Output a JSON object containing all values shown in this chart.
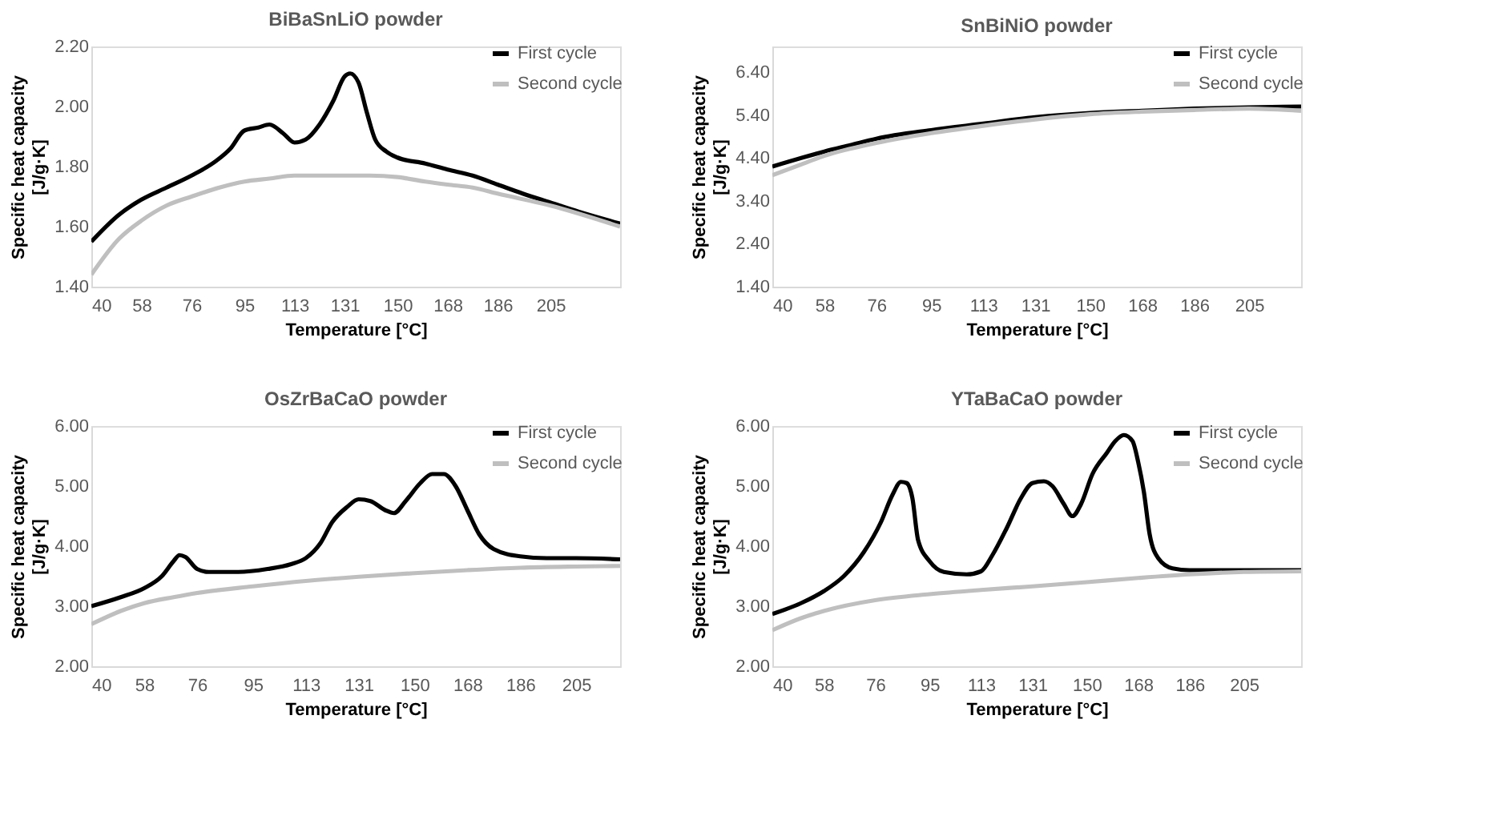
{
  "chart_data": [
    {
      "type": "line",
      "title": "BiBaSnLiO powder",
      "xlabel": "Temperature [°C]",
      "ylabel": "Specific heat capacity\n[J/g·K]",
      "legend": "top right",
      "line_style": "solid",
      "marker": "none",
      "xlim": [
        40,
        230
      ],
      "xticks": [
        40,
        58,
        76,
        95,
        113,
        131,
        150,
        168,
        186,
        205
      ],
      "ylim": [
        1.4,
        2.2
      ],
      "yticks": [
        {
          "value": 1.4,
          "label": "1.40"
        },
        {
          "value": 1.6,
          "label": "1.60"
        },
        {
          "value": 1.8,
          "label": "1.80"
        },
        {
          "value": 2.0,
          "label": "2.00"
        },
        {
          "value": 2.2,
          "label": "2.20"
        }
      ],
      "series": [
        {
          "name": "First cycle",
          "color": "#000000",
          "x": [
            40,
            50,
            58,
            67,
            76,
            85,
            90,
            95,
            100,
            104,
            109,
            113,
            117,
            122,
            127,
            131,
            133,
            136,
            139,
            142,
            146,
            150,
            160,
            168,
            177,
            186,
            195,
            205,
            215,
            230
          ],
          "values": [
            1.55,
            1.64,
            1.69,
            1.73,
            1.77,
            1.82,
            1.86,
            1.92,
            1.93,
            1.94,
            1.91,
            1.88,
            1.89,
            1.94,
            2.02,
            2.1,
            2.11,
            2.08,
            1.98,
            1.89,
            1.85,
            1.83,
            1.81,
            1.79,
            1.77,
            1.74,
            1.71,
            1.68,
            1.65,
            1.61
          ]
        },
        {
          "name": "Second cycle",
          "color": "#bfbfbf",
          "x": [
            40,
            50,
            58,
            67,
            76,
            86,
            95,
            104,
            113,
            122,
            131,
            140,
            150,
            160,
            168,
            177,
            186,
            205,
            230
          ],
          "values": [
            1.44,
            1.56,
            1.62,
            1.67,
            1.7,
            1.73,
            1.75,
            1.76,
            1.77,
            1.77,
            1.77,
            1.77,
            1.765,
            1.75,
            1.74,
            1.73,
            1.71,
            1.67,
            1.6
          ]
        }
      ]
    },
    {
      "type": "line",
      "title": "SnBiNiO powder",
      "xlabel": "Temperature [°C]",
      "ylabel": "Specific heat capacity\n[J/g·K]",
      "legend": "top right",
      "line_style": "solid",
      "marker": "none",
      "xlim": [
        40,
        223
      ],
      "xticks": [
        40,
        58,
        76,
        95,
        113,
        131,
        150,
        168,
        186,
        205
      ],
      "ylim": [
        1.4,
        7.0
      ],
      "yticks": [
        {
          "value": 1.4,
          "label": "1.40"
        },
        {
          "value": 2.4,
          "label": "2.40"
        },
        {
          "value": 3.4,
          "label": "3.40"
        },
        {
          "value": 4.4,
          "label": "4.40"
        },
        {
          "value": 5.4,
          "label": "5.40"
        },
        {
          "value": 6.4,
          "label": "6.40"
        }
      ],
      "series": [
        {
          "name": "First cycle",
          "color": "#000000",
          "x": [
            40,
            50,
            58,
            67,
            76,
            95,
            113,
            131,
            150,
            168,
            186,
            205,
            223
          ],
          "values": [
            4.2,
            4.4,
            4.55,
            4.7,
            4.85,
            5.05,
            5.2,
            5.35,
            5.45,
            5.5,
            5.55,
            5.58,
            5.6
          ]
        },
        {
          "name": "Second cycle",
          "color": "#bfbfbf",
          "x": [
            40,
            50,
            58,
            76,
            95,
            113,
            131,
            150,
            168,
            186,
            205,
            223
          ],
          "values": [
            4.0,
            4.25,
            4.45,
            4.75,
            4.98,
            5.15,
            5.3,
            5.42,
            5.48,
            5.52,
            5.55,
            5.5
          ]
        }
      ]
    },
    {
      "type": "line",
      "title": "OsZrBaCaO powder",
      "xlabel": "Temperature [°C]",
      "ylabel": "Specific heat capacity\n[J/g·K]",
      "legend": "top right",
      "line_style": "solid",
      "marker": "none",
      "xlim": [
        40,
        220
      ],
      "xticks": [
        40,
        58,
        76,
        95,
        113,
        131,
        150,
        168,
        186,
        205
      ],
      "ylim": [
        2.0,
        6.0
      ],
      "yticks": [
        {
          "value": 2,
          "label": "2.00"
        },
        {
          "value": 3,
          "label": "3.00"
        },
        {
          "value": 4,
          "label": "4.00"
        },
        {
          "value": 5,
          "label": "5.00"
        },
        {
          "value": 6,
          "label": "6.00"
        }
      ],
      "series": [
        {
          "name": "First cycle",
          "color": "#000000",
          "x": [
            40,
            50,
            58,
            64,
            68,
            70,
            72,
            76,
            80,
            90,
            100,
            108,
            113,
            118,
            122,
            127,
            131,
            135,
            140,
            143,
            147,
            152,
            156,
            160,
            164,
            168,
            172,
            177,
            186,
            195,
            205,
            220
          ],
          "values": [
            3.0,
            3.15,
            3.3,
            3.5,
            3.75,
            3.85,
            3.82,
            3.62,
            3.57,
            3.57,
            3.62,
            3.7,
            3.8,
            4.05,
            4.4,
            4.65,
            4.78,
            4.75,
            4.6,
            4.55,
            4.75,
            5.05,
            5.2,
            5.2,
            5.0,
            4.6,
            4.2,
            3.95,
            3.83,
            3.8,
            3.8,
            3.78
          ]
        },
        {
          "name": "Second cycle",
          "color": "#bfbfbf",
          "x": [
            40,
            50,
            58,
            68,
            76,
            95,
            113,
            131,
            150,
            168,
            186,
            205,
            220
          ],
          "values": [
            2.7,
            2.92,
            3.05,
            3.15,
            3.22,
            3.33,
            3.42,
            3.49,
            3.55,
            3.6,
            3.64,
            3.66,
            3.67
          ]
        }
      ]
    },
    {
      "type": "line",
      "title": "YTaBaCaO powder",
      "xlabel": "Temperature [°C]",
      "ylabel": "Specific heat capacity\n[J/g·K]",
      "legend": "top right",
      "line_style": "solid",
      "marker": "none",
      "xlim": [
        40,
        225
      ],
      "xticks": [
        40,
        58,
        76,
        95,
        113,
        131,
        150,
        168,
        186,
        205
      ],
      "ylim": [
        2.0,
        6.0
      ],
      "yticks": [
        {
          "value": 2,
          "label": "2.00"
        },
        {
          "value": 3,
          "label": "3.00"
        },
        {
          "value": 4,
          "label": "4.00"
        },
        {
          "value": 5,
          "label": "5.00"
        },
        {
          "value": 6,
          "label": "6.00"
        }
      ],
      "series": [
        {
          "name": "First cycle",
          "color": "#000000",
          "x": [
            40,
            50,
            58,
            65,
            72,
            78,
            82,
            85,
            87,
            89,
            91,
            95,
            100,
            108,
            113,
            117,
            122,
            127,
            131,
            135,
            138,
            142,
            145,
            148,
            152,
            157,
            160,
            163,
            166,
            168,
            170,
            172,
            175,
            180,
            186,
            205,
            225
          ],
          "values": [
            2.87,
            3.05,
            3.25,
            3.5,
            3.9,
            4.4,
            4.85,
            5.07,
            5.05,
            4.8,
            4.1,
            3.75,
            3.57,
            3.53,
            3.58,
            3.85,
            4.3,
            4.8,
            5.05,
            5.08,
            5.0,
            4.7,
            4.5,
            4.7,
            5.2,
            5.55,
            5.75,
            5.85,
            5.75,
            5.4,
            4.9,
            4.2,
            3.8,
            3.63,
            3.6,
            3.6,
            3.6
          ]
        },
        {
          "name": "Second cycle",
          "color": "#bfbfbf",
          "x": [
            40,
            50,
            58,
            76,
            95,
            113,
            131,
            150,
            168,
            186,
            205,
            225
          ],
          "values": [
            2.6,
            2.8,
            2.92,
            3.1,
            3.2,
            3.27,
            3.33,
            3.4,
            3.47,
            3.53,
            3.57,
            3.58
          ]
        }
      ]
    }
  ]
}
